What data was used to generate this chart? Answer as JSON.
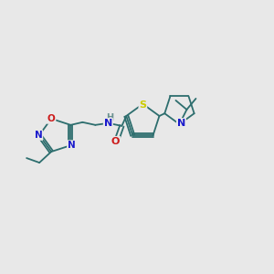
{
  "background_color": "#e8e8e8",
  "bond_color": "#2d6e6e",
  "atom_colors": {
    "N": "#1a1acc",
    "O": "#cc1a1a",
    "S": "#cccc00",
    "H": "#6a9090",
    "C": "#2d6e6e"
  },
  "figsize": [
    3.0,
    3.0
  ],
  "dpi": 100
}
